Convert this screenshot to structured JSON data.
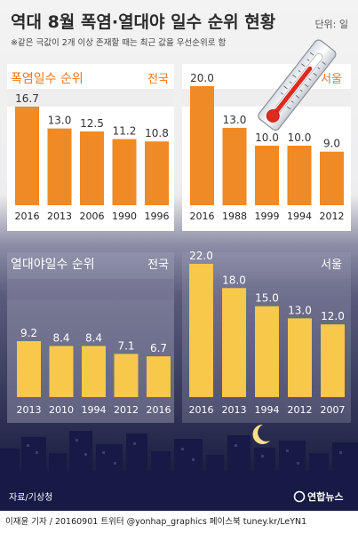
{
  "header": {
    "title": "역대 8월 폭염·열대야 일수 순위 현황",
    "unit": "단위: 일",
    "note": "※같은 극값이 2개 이상 존재할 때는 최근 값을 우선순위로 함"
  },
  "colors": {
    "heat_bar": "#F08A24",
    "heat_text": "#F07A1C",
    "night_bar": "#F7C84A",
    "sky_top": "#4E4F73",
    "sky_bottom": "#0E1136"
  },
  "chart_data": [
    {
      "type": "bar",
      "title": "폭염일수 순위",
      "region": "전국",
      "categories": [
        "2016",
        "2013",
        "2006",
        "1990",
        "1996"
      ],
      "values": [
        16.7,
        13.0,
        12.5,
        11.2,
        10.8
      ],
      "value_labels": [
        "16.7",
        "13.0",
        "12.5",
        "11.2",
        "10.8"
      ]
    },
    {
      "type": "bar",
      "region": "서울",
      "categories": [
        "2016",
        "1988",
        "1999",
        "1994",
        "2012"
      ],
      "values": [
        20.0,
        13.0,
        10.0,
        10.0,
        9.0
      ],
      "value_labels": [
        "20.0",
        "13.0",
        "10.0",
        "10.0",
        "9.0"
      ]
    },
    {
      "type": "bar",
      "title": "열대야일수 순위",
      "region": "전국",
      "categories": [
        "2013",
        "2010",
        "1994",
        "2012",
        "2016"
      ],
      "values": [
        9.2,
        8.4,
        8.4,
        7.1,
        6.7
      ],
      "value_labels": [
        "9.2",
        "8.4",
        "8.4",
        "7.1",
        "6.7"
      ]
    },
    {
      "type": "bar",
      "region": "서울",
      "categories": [
        "2016",
        "2013",
        "1994",
        "2012",
        "2007"
      ],
      "values": [
        22.0,
        18.0,
        15.0,
        13.0,
        12.0
      ],
      "value_labels": [
        "22.0",
        "18.0",
        "15.0",
        "13.0",
        "12.0"
      ]
    }
  ],
  "source": "자료/기상청",
  "logo": "연합뉴스",
  "footer": "이재윤 기자 / 20160901  트위터 @yonhap_graphics  페이스북 tuney.kr/LeYN1"
}
